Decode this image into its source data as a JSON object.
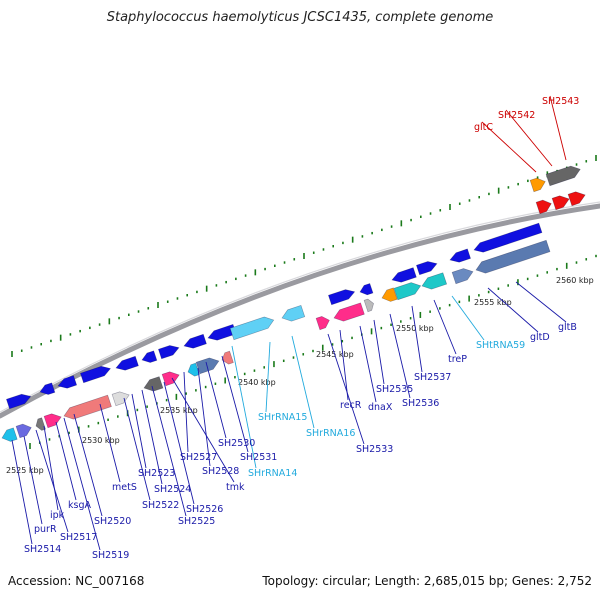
{
  "title": "Staphylococcus haemolyticus JCSC1435, complete genome",
  "footer": {
    "accession": "Accession: NC_007168",
    "summary": "Topology: circular; Length: 2,685,015 bp; Genes: 2,752"
  },
  "colors": {
    "blue_gene": "#1010e0",
    "red_gene": "#ee1111",
    "rna_label": "#22aadd",
    "tick": "#1a7a1a",
    "backbone": "#9a9aa0"
  },
  "scale_labels": [
    "2525 kbp",
    "2530 kbp",
    "2535 kbp",
    "2540 kbp",
    "2545 kbp",
    "2550 kbp",
    "2555 kbp",
    "2560 kbp"
  ],
  "gene_labels": [
    {
      "text": "SH2543",
      "kind": "red"
    },
    {
      "text": "SH2542",
      "kind": "red"
    },
    {
      "text": "gltC",
      "kind": "red"
    },
    {
      "text": "gltB",
      "kind": "blue"
    },
    {
      "text": "gltD",
      "kind": "blue"
    },
    {
      "text": "SHtRNA59",
      "kind": "rna"
    },
    {
      "text": "treP",
      "kind": "blue"
    },
    {
      "text": "SH2537",
      "kind": "blue"
    },
    {
      "text": "SH2536",
      "kind": "blue"
    },
    {
      "text": "SH2535",
      "kind": "blue"
    },
    {
      "text": "dnaX",
      "kind": "blue"
    },
    {
      "text": "recR",
      "kind": "blue"
    },
    {
      "text": "SH2533",
      "kind": "blue"
    },
    {
      "text": "SHrRNA16",
      "kind": "rna"
    },
    {
      "text": "SHrRNA15",
      "kind": "rna"
    },
    {
      "text": "SHrRNA14",
      "kind": "rna"
    },
    {
      "text": "SH2531",
      "kind": "blue"
    },
    {
      "text": "SH2530",
      "kind": "blue"
    },
    {
      "text": "SH2528",
      "kind": "blue"
    },
    {
      "text": "SH2527",
      "kind": "blue"
    },
    {
      "text": "tmk",
      "kind": "blue"
    },
    {
      "text": "SH2526",
      "kind": "blue"
    },
    {
      "text": "SH2525",
      "kind": "blue"
    },
    {
      "text": "SH2524",
      "kind": "blue"
    },
    {
      "text": "SH2523",
      "kind": "blue"
    },
    {
      "text": "SH2522",
      "kind": "blue"
    },
    {
      "text": "metS",
      "kind": "blue"
    },
    {
      "text": "SH2520",
      "kind": "blue"
    },
    {
      "text": "SH2519",
      "kind": "blue"
    },
    {
      "text": "ksgA",
      "kind": "blue"
    },
    {
      "text": "ipk",
      "kind": "blue"
    },
    {
      "text": "SH2517",
      "kind": "blue"
    },
    {
      "text": "purR",
      "kind": "blue"
    },
    {
      "text": "SH2514",
      "kind": "blue"
    }
  ]
}
